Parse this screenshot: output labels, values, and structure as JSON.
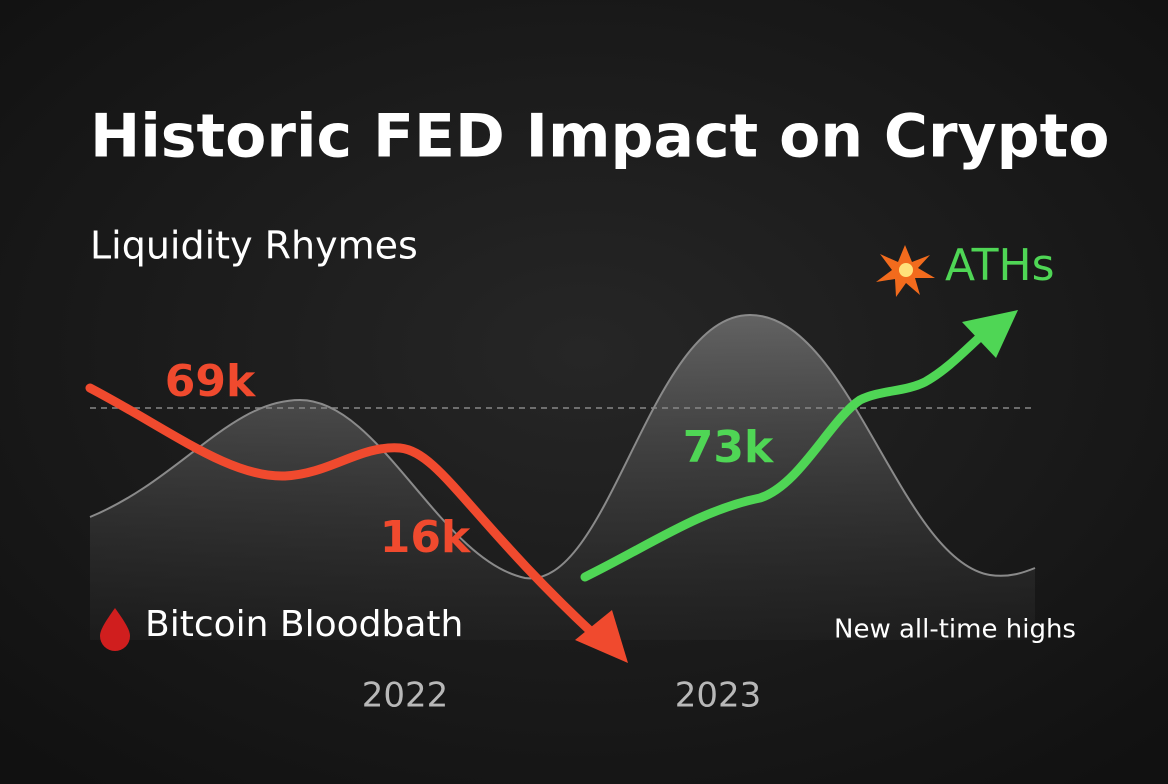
{
  "header": {
    "title": "Historic FED Impact on Crypto",
    "subtitle": "Liquidity Rhymes"
  },
  "callouts": {
    "peak_2021": "69k",
    "bottom_2022": "16k",
    "peak_2024": "73k",
    "aths": "ATHs"
  },
  "captions": {
    "left": "Bitcoin Bloodbath",
    "right": "New all-time highs"
  },
  "periods": [
    "2022",
    "2023"
  ]
}
